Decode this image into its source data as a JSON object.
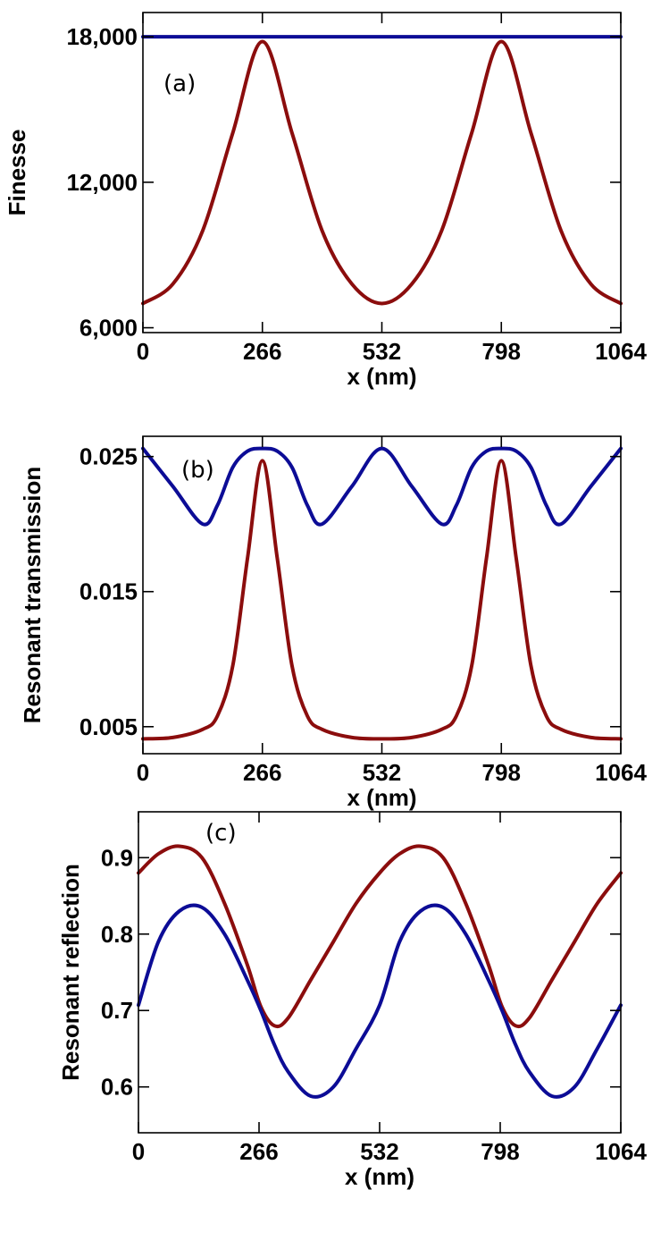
{
  "chart_data": [
    {
      "type": "line",
      "panel_label": "(a)",
      "xlabel": "x (nm)",
      "ylabel": "Finesse",
      "xlim": [
        0,
        1064
      ],
      "ylim": [
        5800,
        19000
      ],
      "xticks": [
        0,
        266,
        532,
        798,
        1064
      ],
      "xtick_labels": [
        "0",
        "266",
        "532",
        "798",
        "1064"
      ],
      "yticks": [
        6000,
        12000,
        18000
      ],
      "ytick_labels": [
        "6,000",
        "12,000",
        "18,000"
      ],
      "x": [
        0,
        66.5,
        133,
        199.5,
        266,
        332.5,
        399,
        465.5,
        532,
        598.5,
        665,
        731.5,
        798,
        864.5,
        931,
        997.5,
        1064
      ],
      "series": [
        {
          "color": "#8b0d0d",
          "values": [
            7000,
            7800,
            10000,
            14000,
            17800,
            14000,
            10000,
            7800,
            7000,
            7800,
            10000,
            14000,
            17800,
            14000,
            10000,
            7800,
            7000
          ]
        },
        {
          "color": "#0c0c96",
          "values": [
            18000,
            18000,
            18000,
            18000,
            18000,
            18000,
            18000,
            18000,
            18000,
            18000,
            18000,
            18000,
            18000,
            18000,
            18000,
            18000,
            18000
          ]
        }
      ]
    },
    {
      "type": "line",
      "panel_label": "(b)",
      "xlabel": "x (nm)",
      "ylabel": "Resonant transmission",
      "xlim": [
        0,
        1064
      ],
      "ylim": [
        0.003,
        0.0265
      ],
      "xticks": [
        0,
        266,
        532,
        798,
        1064
      ],
      "xtick_labels": [
        "0",
        "266",
        "532",
        "798",
        "1064"
      ],
      "yticks": [
        0.005,
        0.015,
        0.025
      ],
      "ytick_labels": [
        "0.005",
        "0.015",
        "0.025"
      ],
      "x": [
        0,
        66.5,
        133,
        166,
        200,
        233,
        266,
        299,
        332,
        366,
        399,
        465.5,
        532,
        598.5,
        665,
        698,
        732,
        765,
        798,
        831,
        864,
        898,
        931,
        997.5,
        1064
      ],
      "series": [
        {
          "color": "#8b0d0d",
          "values": [
            0.0041,
            0.0042,
            0.0048,
            0.0058,
            0.0095,
            0.0175,
            0.0247,
            0.0175,
            0.0095,
            0.0058,
            0.0048,
            0.0042,
            0.0041,
            0.0042,
            0.0048,
            0.0058,
            0.0095,
            0.0175,
            0.0247,
            0.0175,
            0.0095,
            0.0058,
            0.0048,
            0.0042,
            0.0041
          ]
        },
        {
          "color": "#0c0c96",
          "values": [
            0.0256,
            0.0228,
            0.02,
            0.0214,
            0.0242,
            0.0254,
            0.0256,
            0.0254,
            0.0242,
            0.0214,
            0.02,
            0.0228,
            0.0256,
            0.0228,
            0.02,
            0.0214,
            0.0242,
            0.0254,
            0.0256,
            0.0254,
            0.0242,
            0.0214,
            0.02,
            0.0228,
            0.0256
          ]
        }
      ]
    },
    {
      "type": "line",
      "panel_label": "(c)",
      "xlabel": "x (nm)",
      "ylabel": "Resonant reflection",
      "xlim": [
        0,
        1064
      ],
      "ylim": [
        0.54,
        0.96
      ],
      "xticks": [
        0,
        266,
        532,
        798,
        1064
      ],
      "xtick_labels": [
        "0",
        "266",
        "532",
        "798",
        "1064"
      ],
      "yticks": [
        0.6,
        0.7,
        0.8,
        0.9
      ],
      "ytick_labels": [
        "0.6",
        "0.7",
        "0.8",
        "0.9"
      ],
      "x": [
        0,
        44,
        90,
        140,
        190,
        240,
        270,
        300,
        330,
        380,
        430,
        480,
        532,
        576,
        622,
        672,
        722,
        772,
        802,
        832,
        862,
        912,
        962,
        1012,
        1064
      ],
      "series": [
        {
          "color": "#8b0d0d",
          "values": [
            0.88,
            0.905,
            0.915,
            0.9,
            0.84,
            0.76,
            0.705,
            0.68,
            0.69,
            0.74,
            0.79,
            0.84,
            0.88,
            0.905,
            0.915,
            0.9,
            0.84,
            0.76,
            0.705,
            0.68,
            0.69,
            0.74,
            0.79,
            0.84,
            0.88
          ]
        },
        {
          "color": "#0c0c96",
          "values": [
            0.707,
            0.79,
            0.83,
            0.835,
            0.8,
            0.74,
            0.7,
            0.655,
            0.62,
            0.588,
            0.6,
            0.65,
            0.707,
            0.79,
            0.83,
            0.835,
            0.8,
            0.74,
            0.7,
            0.655,
            0.62,
            0.588,
            0.6,
            0.65,
            0.707
          ]
        }
      ]
    }
  ]
}
